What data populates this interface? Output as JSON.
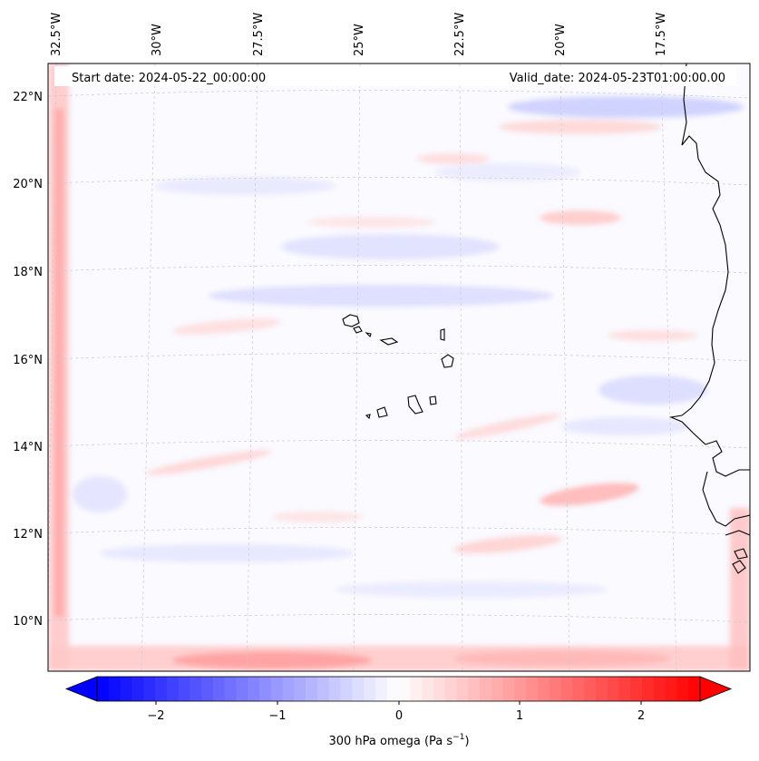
{
  "header": {
    "start_date": "Start date: 2024-05-22_00:00:00",
    "valid_date": "Valid_date: 2024-05-23T01:00:00.00"
  },
  "map": {
    "lon_labels": [
      "32.5°W",
      "30°W",
      "27.5°W",
      "25°W",
      "22.5°W",
      "20°W",
      "17.5°W"
    ],
    "lat_labels": [
      "22°N",
      "20°N",
      "18°N",
      "16°N",
      "14°N",
      "12°N",
      "10°N"
    ],
    "variable": "300 hPa omega",
    "coastline_color": "#000000",
    "gridline_color": "#cccccc"
  },
  "colorbar": {
    "ticks": [
      "−2",
      "−1",
      "0",
      "1",
      "2"
    ],
    "label_main": "300 hPa omega (Pa s",
    "label_exp": "−1",
    "label_close": ")",
    "vmin": -2.6,
    "vmax": 2.6,
    "color_min": "#0000ff",
    "color_mid": "#ffffff",
    "color_max": "#ff0000"
  }
}
